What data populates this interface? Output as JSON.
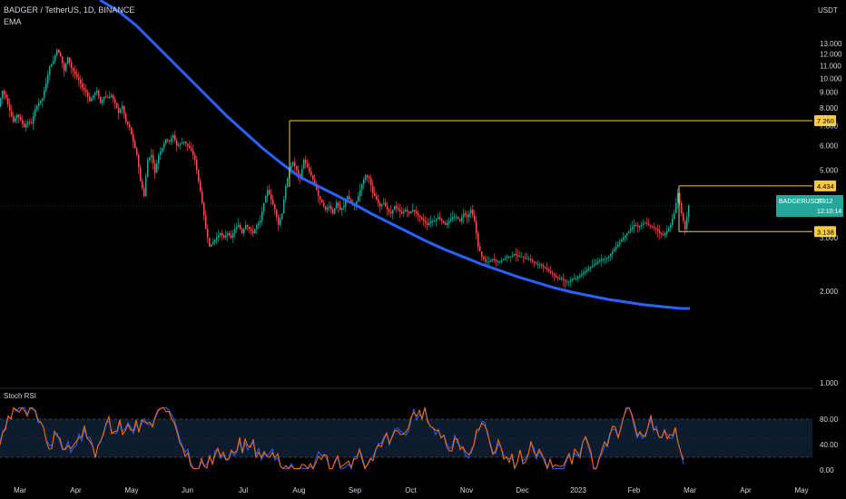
{
  "header": {
    "symbol": "BADGER / TetherUS, 1D, BINANCE",
    "indicator": "EMA",
    "currency": "USDT"
  },
  "chart_data": {
    "type": "candlestick",
    "x_labels": [
      "Mar",
      "Apr",
      "May",
      "Jun",
      "Jul",
      "Aug",
      "Sep",
      "Oct",
      "Nov",
      "Dec",
      "2023",
      "Feb",
      "Mar",
      "Apr",
      "May"
    ],
    "price_axis": {
      "ticks": [
        "1.000",
        "2.000",
        "3.000",
        "4.000",
        "5.000",
        "6.000",
        "7.000",
        "8.000",
        "9.000",
        "10.000",
        "11.000",
        "12.000",
        "13.000"
      ],
      "scale": "log"
    },
    "price_series": {
      "name": "BADGERUSDT",
      "points": [
        [
          0,
          8.1
        ],
        [
          4,
          9.1
        ],
        [
          8,
          8.6
        ],
        [
          12,
          7.8
        ],
        [
          16,
          7.2
        ],
        [
          20,
          7.6
        ],
        [
          24,
          7.3
        ],
        [
          28,
          6.9
        ],
        [
          32,
          7.2
        ],
        [
          36,
          7.1
        ],
        [
          40,
          7.9
        ],
        [
          44,
          8.3
        ],
        [
          48,
          8.6
        ],
        [
          52,
          9.6
        ],
        [
          56,
          10.9
        ],
        [
          60,
          11.4
        ],
        [
          64,
          12.4
        ],
        [
          68,
          11.8
        ],
        [
          72,
          10.6
        ],
        [
          76,
          11.7
        ],
        [
          80,
          10.8
        ],
        [
          84,
          10.3
        ],
        [
          88,
          9.9
        ],
        [
          92,
          9.3
        ],
        [
          96,
          9.0
        ],
        [
          100,
          8.4
        ],
        [
          104,
          8.8
        ],
        [
          108,
          9.1
        ],
        [
          112,
          8.3
        ],
        [
          116,
          8.7
        ],
        [
          120,
          8.6
        ],
        [
          124,
          8.8
        ],
        [
          128,
          8.3
        ],
        [
          132,
          7.7
        ],
        [
          136,
          8.1
        ],
        [
          140,
          7.2
        ],
        [
          144,
          6.9
        ],
        [
          148,
          6.2
        ],
        [
          152,
          5.6
        ],
        [
          156,
          4.6
        ],
        [
          160,
          4.1
        ],
        [
          164,
          5.4
        ],
        [
          168,
          5.6
        ],
        [
          172,
          4.9
        ],
        [
          176,
          5.6
        ],
        [
          180,
          5.9
        ],
        [
          184,
          6.3
        ],
        [
          188,
          6.2
        ],
        [
          192,
          6.5
        ],
        [
          196,
          6.0
        ],
        [
          200,
          6.1
        ],
        [
          204,
          6.2
        ],
        [
          208,
          6.0
        ],
        [
          212,
          5.8
        ],
        [
          216,
          5.4
        ],
        [
          220,
          4.6
        ],
        [
          224,
          3.9
        ],
        [
          228,
          3.2
        ],
        [
          232,
          2.8
        ],
        [
          236,
          2.9
        ],
        [
          240,
          3.0
        ],
        [
          244,
          3.1
        ],
        [
          248,
          3.0
        ],
        [
          252,
          3.1
        ],
        [
          256,
          3.0
        ],
        [
          260,
          3.2
        ],
        [
          264,
          3.3
        ],
        [
          268,
          3.1
        ],
        [
          272,
          3.3
        ],
        [
          276,
          3.2
        ],
        [
          280,
          3.1
        ],
        [
          284,
          3.3
        ],
        [
          288,
          3.4
        ],
        [
          292,
          3.9
        ],
        [
          296,
          4.3
        ],
        [
          300,
          4.0
        ],
        [
          304,
          3.7
        ],
        [
          308,
          3.3
        ],
        [
          312,
          3.6
        ],
        [
          316,
          4.4
        ],
        [
          320,
          5.0
        ],
        [
          324,
          5.3
        ],
        [
          328,
          5.0
        ],
        [
          332,
          4.7
        ],
        [
          336,
          5.4
        ],
        [
          340,
          5.1
        ],
        [
          344,
          4.8
        ],
        [
          348,
          4.5
        ],
        [
          352,
          4.1
        ],
        [
          356,
          3.9
        ],
        [
          360,
          3.7
        ],
        [
          364,
          3.8
        ],
        [
          368,
          3.6
        ],
        [
          372,
          3.9
        ],
        [
          376,
          3.7
        ],
        [
          380,
          3.8
        ],
        [
          384,
          4.1
        ],
        [
          388,
          3.9
        ],
        [
          392,
          3.8
        ],
        [
          396,
          4.1
        ],
        [
          400,
          4.5
        ],
        [
          404,
          4.8
        ],
        [
          408,
          4.7
        ],
        [
          412,
          4.2
        ],
        [
          416,
          4.0
        ],
        [
          420,
          3.8
        ],
        [
          424,
          3.9
        ],
        [
          428,
          3.7
        ],
        [
          432,
          3.6
        ],
        [
          436,
          3.8
        ],
        [
          440,
          3.7
        ],
        [
          444,
          3.6
        ],
        [
          448,
          3.7
        ],
        [
          452,
          3.6
        ],
        [
          456,
          3.7
        ],
        [
          460,
          3.6
        ],
        [
          464,
          3.5
        ],
        [
          468,
          3.4
        ],
        [
          472,
          3.3
        ],
        [
          476,
          3.4
        ],
        [
          480,
          3.4
        ],
        [
          484,
          3.5
        ],
        [
          488,
          3.4
        ],
        [
          492,
          3.3
        ],
        [
          496,
          3.4
        ],
        [
          500,
          3.5
        ],
        [
          504,
          3.5
        ],
        [
          508,
          3.4
        ],
        [
          512,
          3.6
        ],
        [
          516,
          3.5
        ],
        [
          520,
          3.7
        ],
        [
          524,
          3.4
        ],
        [
          528,
          2.8
        ],
        [
          532,
          2.6
        ],
        [
          536,
          2.5
        ],
        [
          540,
          2.5
        ],
        [
          544,
          2.55
        ],
        [
          548,
          2.5
        ],
        [
          552,
          2.5
        ],
        [
          556,
          2.55
        ],
        [
          560,
          2.6
        ],
        [
          564,
          2.6
        ],
        [
          568,
          2.65
        ],
        [
          572,
          2.6
        ],
        [
          576,
          2.6
        ],
        [
          580,
          2.55
        ],
        [
          584,
          2.55
        ],
        [
          588,
          2.5
        ],
        [
          592,
          2.45
        ],
        [
          596,
          2.45
        ],
        [
          600,
          2.4
        ],
        [
          604,
          2.35
        ],
        [
          608,
          2.3
        ],
        [
          612,
          2.25
        ],
        [
          616,
          2.2
        ],
        [
          620,
          2.2
        ],
        [
          624,
          2.15
        ],
        [
          628,
          2.15
        ],
        [
          632,
          2.2
        ],
        [
          636,
          2.2
        ],
        [
          640,
          2.25
        ],
        [
          644,
          2.3
        ],
        [
          648,
          2.35
        ],
        [
          652,
          2.4
        ],
        [
          656,
          2.45
        ],
        [
          660,
          2.5
        ],
        [
          664,
          2.55
        ],
        [
          668,
          2.55
        ],
        [
          672,
          2.6
        ],
        [
          676,
          2.7
        ],
        [
          680,
          2.8
        ],
        [
          684,
          2.9
        ],
        [
          688,
          3.0
        ],
        [
          692,
          3.1
        ],
        [
          696,
          3.2
        ],
        [
          700,
          3.3
        ],
        [
          704,
          3.25
        ],
        [
          708,
          3.3
        ],
        [
          712,
          3.35
        ],
        [
          716,
          3.3
        ],
        [
          720,
          3.25
        ],
        [
          724,
          3.2
        ],
        [
          728,
          3.1
        ],
        [
          732,
          3.05
        ],
        [
          736,
          3.15
        ],
        [
          740,
          3.3
        ],
        [
          744,
          3.6
        ],
        [
          748,
          4.2
        ],
        [
          752,
          3.6
        ],
        [
          756,
          3.2
        ],
        [
          760,
          3.81
        ]
      ]
    },
    "ema_series": {
      "name": "EMA",
      "color": "#2962ff",
      "points": [
        [
          110,
          0
        ],
        [
          130,
          12
        ],
        [
          150,
          28
        ],
        [
          170,
          48
        ],
        [
          190,
          68
        ],
        [
          210,
          88
        ],
        [
          230,
          108
        ],
        [
          250,
          128
        ],
        [
          270,
          146
        ],
        [
          290,
          164
        ],
        [
          310,
          180
        ],
        [
          330,
          195
        ],
        [
          350,
          205
        ],
        [
          370,
          215
        ],
        [
          390,
          225
        ],
        [
          410,
          236
        ],
        [
          430,
          246
        ],
        [
          450,
          256
        ],
        [
          470,
          266
        ],
        [
          490,
          275
        ],
        [
          510,
          283
        ],
        [
          530,
          291
        ],
        [
          550,
          298
        ],
        [
          570,
          305
        ],
        [
          590,
          311
        ],
        [
          610,
          317
        ],
        [
          630,
          322
        ],
        [
          650,
          326
        ],
        [
          670,
          330
        ],
        [
          690,
          333
        ],
        [
          710,
          336
        ],
        [
          730,
          338
        ],
        [
          750,
          340
        ],
        [
          760,
          340
        ]
      ]
    },
    "levels": [
      {
        "value": "7.260",
        "color": "#f7c945",
        "from_x": 319
      },
      {
        "value": "4.434",
        "color": "#f7c945",
        "from_x": 748
      },
      {
        "value": "3.138",
        "color": "#f7c945",
        "from_x": 748
      }
    ],
    "last_price": {
      "symbol": "BADGERUSDT",
      "price": "3.812",
      "countdown": "12:10:14",
      "color": "#26a69a"
    },
    "rsi_panel": {
      "title": "Stoch RSI",
      "ticks": [
        "0.00",
        "40.00",
        "80.00"
      ],
      "upper": 80,
      "lower": 20
    },
    "grid": false,
    "legend": "top-left"
  }
}
